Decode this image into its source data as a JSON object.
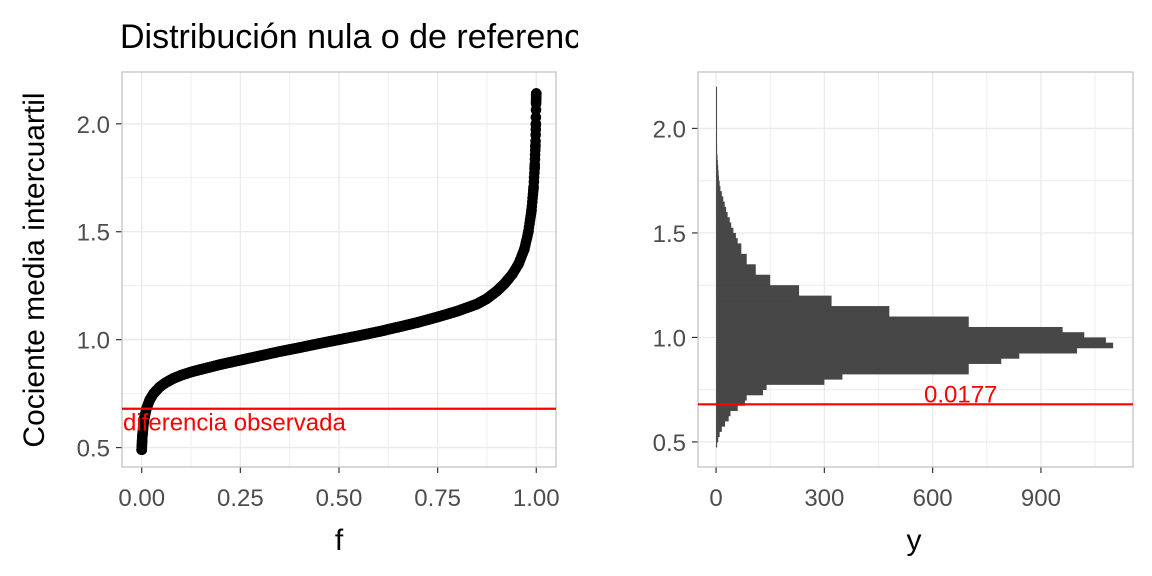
{
  "title": "Distribución nula o de referencia",
  "chart_data": [
    {
      "type": "scatter",
      "panel": "left",
      "xlabel": "f",
      "ylabel": "Cociente media intercuartil",
      "xlim": [
        -0.05,
        1.05
      ],
      "ylim": [
        0.41,
        2.24
      ],
      "xticks": [
        "0.00",
        "0.25",
        "0.50",
        "0.75",
        "1.00"
      ],
      "yticks": [
        "0.5",
        "1.0",
        "1.5",
        "2.0"
      ],
      "grid": true,
      "points": [
        [
          0.0,
          0.49
        ],
        [
          0.001,
          0.53
        ],
        [
          0.002,
          0.56
        ],
        [
          0.004,
          0.6
        ],
        [
          0.007,
          0.64
        ],
        [
          0.012,
          0.68
        ],
        [
          0.02,
          0.72
        ],
        [
          0.03,
          0.75
        ],
        [
          0.045,
          0.78
        ],
        [
          0.06,
          0.8
        ],
        [
          0.08,
          0.82
        ],
        [
          0.1,
          0.835
        ],
        [
          0.125,
          0.85
        ],
        [
          0.15,
          0.862
        ],
        [
          0.2,
          0.885
        ],
        [
          0.25,
          0.905
        ],
        [
          0.3,
          0.925
        ],
        [
          0.35,
          0.945
        ],
        [
          0.4,
          0.963
        ],
        [
          0.45,
          0.982
        ],
        [
          0.5,
          1.0
        ],
        [
          0.55,
          1.018
        ],
        [
          0.6,
          1.037
        ],
        [
          0.65,
          1.058
        ],
        [
          0.7,
          1.08
        ],
        [
          0.75,
          1.105
        ],
        [
          0.8,
          1.132
        ],
        [
          0.85,
          1.165
        ],
        [
          0.875,
          1.19
        ],
        [
          0.9,
          1.225
        ],
        [
          0.92,
          1.26
        ],
        [
          0.94,
          1.305
        ],
        [
          0.955,
          1.35
        ],
        [
          0.97,
          1.42
        ],
        [
          0.98,
          1.5
        ],
        [
          0.988,
          1.6
        ],
        [
          0.993,
          1.7
        ],
        [
          0.996,
          1.8
        ],
        [
          0.998,
          1.9
        ],
        [
          0.999,
          2.0
        ],
        [
          0.9995,
          2.1
        ],
        [
          1.0,
          2.14
        ]
      ],
      "hline": {
        "y": 0.68,
        "label": "diferencia observada",
        "color": "#ff0000"
      },
      "point_color": "#000000"
    },
    {
      "type": "bar",
      "orientation": "horizontal",
      "panel": "right",
      "xlabel": "y",
      "ylabel": "",
      "xlim": [
        -50,
        1155
      ],
      "ylim": [
        0.38,
        2.27
      ],
      "xticks": [
        0,
        300,
        600,
        900
      ],
      "yticks": [
        "0.5",
        "1.0",
        "1.5",
        "2.0"
      ],
      "grid": true,
      "bin_width": 0.025,
      "bins": [
        {
          "y": 0.4875,
          "count": 3
        },
        {
          "y": 0.5125,
          "count": 6
        },
        {
          "y": 0.5375,
          "count": 10
        },
        {
          "y": 0.5625,
          "count": 16
        },
        {
          "y": 0.5875,
          "count": 25
        },
        {
          "y": 0.6125,
          "count": 35
        },
        {
          "y": 0.6375,
          "count": 40
        },
        {
          "y": 0.6625,
          "count": 60
        },
        {
          "y": 0.6875,
          "count": 80
        },
        {
          "y": 0.7125,
          "count": 85
        },
        {
          "y": 0.7375,
          "count": 130
        },
        {
          "y": 0.7625,
          "count": 140
        },
        {
          "y": 0.7875,
          "count": 300
        },
        {
          "y": 0.8125,
          "count": 350
        },
        {
          "y": 0.8375,
          "count": 700
        },
        {
          "y": 0.8625,
          "count": 700
        },
        {
          "y": 0.8875,
          "count": 790
        },
        {
          "y": 0.9125,
          "count": 840
        },
        {
          "y": 0.9375,
          "count": 1000
        },
        {
          "y": 0.9625,
          "count": 1100
        },
        {
          "y": 0.9875,
          "count": 1080
        },
        {
          "y": 1.0125,
          "count": 1020
        },
        {
          "y": 1.0375,
          "count": 960
        },
        {
          "y": 1.0625,
          "count": 700
        },
        {
          "y": 1.0875,
          "count": 700
        },
        {
          "y": 1.1125,
          "count": 480
        },
        {
          "y": 1.1375,
          "count": 480
        },
        {
          "y": 1.1625,
          "count": 320
        },
        {
          "y": 1.1875,
          "count": 320
        },
        {
          "y": 1.2125,
          "count": 230
        },
        {
          "y": 1.2375,
          "count": 230
        },
        {
          "y": 1.2625,
          "count": 150
        },
        {
          "y": 1.2875,
          "count": 150
        },
        {
          "y": 1.3125,
          "count": 110
        },
        {
          "y": 1.3375,
          "count": 110
        },
        {
          "y": 1.3625,
          "count": 85
        },
        {
          "y": 1.3875,
          "count": 85
        },
        {
          "y": 1.4125,
          "count": 70
        },
        {
          "y": 1.4375,
          "count": 70
        },
        {
          "y": 1.4625,
          "count": 60
        },
        {
          "y": 1.4875,
          "count": 55
        },
        {
          "y": 1.5125,
          "count": 48
        },
        {
          "y": 1.5375,
          "count": 42
        },
        {
          "y": 1.5625,
          "count": 38
        },
        {
          "y": 1.5875,
          "count": 32
        },
        {
          "y": 1.6125,
          "count": 28
        },
        {
          "y": 1.6375,
          "count": 24
        },
        {
          "y": 1.6625,
          "count": 20
        },
        {
          "y": 1.6875,
          "count": 16
        },
        {
          "y": 1.7125,
          "count": 12
        },
        {
          "y": 1.7375,
          "count": 10
        },
        {
          "y": 1.7625,
          "count": 8
        },
        {
          "y": 1.7875,
          "count": 7
        },
        {
          "y": 1.8125,
          "count": 6
        },
        {
          "y": 1.8375,
          "count": 5
        },
        {
          "y": 1.8625,
          "count": 4
        },
        {
          "y": 1.8875,
          "count": 3
        },
        {
          "y": 1.9125,
          "count": 3
        },
        {
          "y": 1.9375,
          "count": 2
        },
        {
          "y": 1.9625,
          "count": 2
        },
        {
          "y": 1.9875,
          "count": 2
        },
        {
          "y": 2.0125,
          "count": 1
        },
        {
          "y": 2.0375,
          "count": 1
        },
        {
          "y": 2.0625,
          "count": 1
        },
        {
          "y": 2.0875,
          "count": 1
        },
        {
          "y": 2.1125,
          "count": 1
        },
        {
          "y": 2.1375,
          "count": 1
        },
        {
          "y": 2.1625,
          "count": 1
        },
        {
          "y": 2.1875,
          "count": 1
        }
      ],
      "bar_color": "#474747",
      "hline": {
        "y": 0.68,
        "label": "0.0177",
        "color": "#ff0000"
      }
    }
  ],
  "colors": {
    "grid": "#ebebeb",
    "panel_border": "#bdbdbd",
    "tick_text": "#4d4d4d",
    "axis_title": "#000000",
    "reference_line": "#ff0000"
  }
}
